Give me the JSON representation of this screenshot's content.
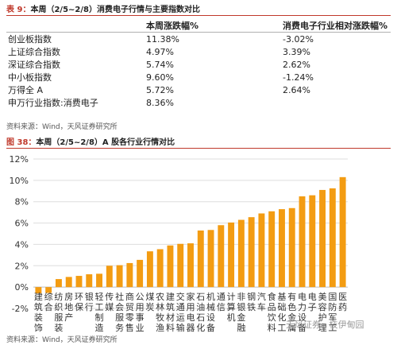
{
  "table": {
    "caption_tag": "表 9：",
    "caption": "本周（2/5~2/8）消费电子行情与主要指数对比",
    "headers": [
      "",
      "本周涨跌幅%",
      "消费电子行业相对涨跌幅%"
    ],
    "rows": [
      [
        "创业板指数",
        "11.38%",
        "-3.02%"
      ],
      [
        "上证综合指数",
        "4.97%",
        "3.39%"
      ],
      [
        "深证综合指数",
        "5.74%",
        "2.62%"
      ],
      [
        "中小板指数",
        "9.60%",
        "-1.24%"
      ],
      [
        "万得全 A",
        "5.72%",
        "2.64%"
      ],
      [
        "申万行业指数:消费电子",
        "8.36%",
        ""
      ]
    ],
    "source": "资料来源：Wind，天风证券研究所"
  },
  "chart_caption_tag": "图 38：",
  "chart_caption": "本周（2/5~2/8）A 股各行业行情对比",
  "chart_source": "资料来源：Wind，天风证券研究所",
  "watermark": "天风证券 · 枝伊甸园",
  "colors": {
    "bar": "#f39c12",
    "grid": "#dddddd",
    "accent": "#c0392b"
  },
  "chart_data": {
    "type": "bar",
    "categories": [
      "建筑装饰",
      "综合",
      "纺织服装",
      "房地产",
      "环保",
      "银行",
      "轻工制造",
      "传媒",
      "社会服务",
      "商贸零售",
      "公用事业",
      "煤炭",
      "农林牧渔",
      "建筑材料",
      "交通运输",
      "家用电器",
      "石油石化",
      "机械设备",
      "通信",
      "计算机",
      "非银金融",
      "钢铁",
      "汽车",
      "食品饮料",
      "基础化工",
      "有色金属",
      "电力设备",
      "电子",
      "美容护理",
      "国防军工",
      "医药"
    ],
    "values": [
      -0.6,
      -0.55,
      0.75,
      0.95,
      1.05,
      1.2,
      1.25,
      2.0,
      2.05,
      2.25,
      2.55,
      3.35,
      3.55,
      3.9,
      4.05,
      4.1,
      5.3,
      5.35,
      5.8,
      6.05,
      6.3,
      6.55,
      6.9,
      7.1,
      7.3,
      7.4,
      8.5,
      8.6,
      9.1,
      9.25,
      10.3
    ],
    "ylim": [
      -2,
      12
    ],
    "yticks": [
      -2,
      0,
      2,
      4,
      6,
      8,
      10,
      12
    ],
    "ytick_labels": [
      "-2%",
      "0%",
      "2%",
      "4%",
      "6%",
      "8%",
      "10%",
      "12%"
    ],
    "grid": true
  }
}
